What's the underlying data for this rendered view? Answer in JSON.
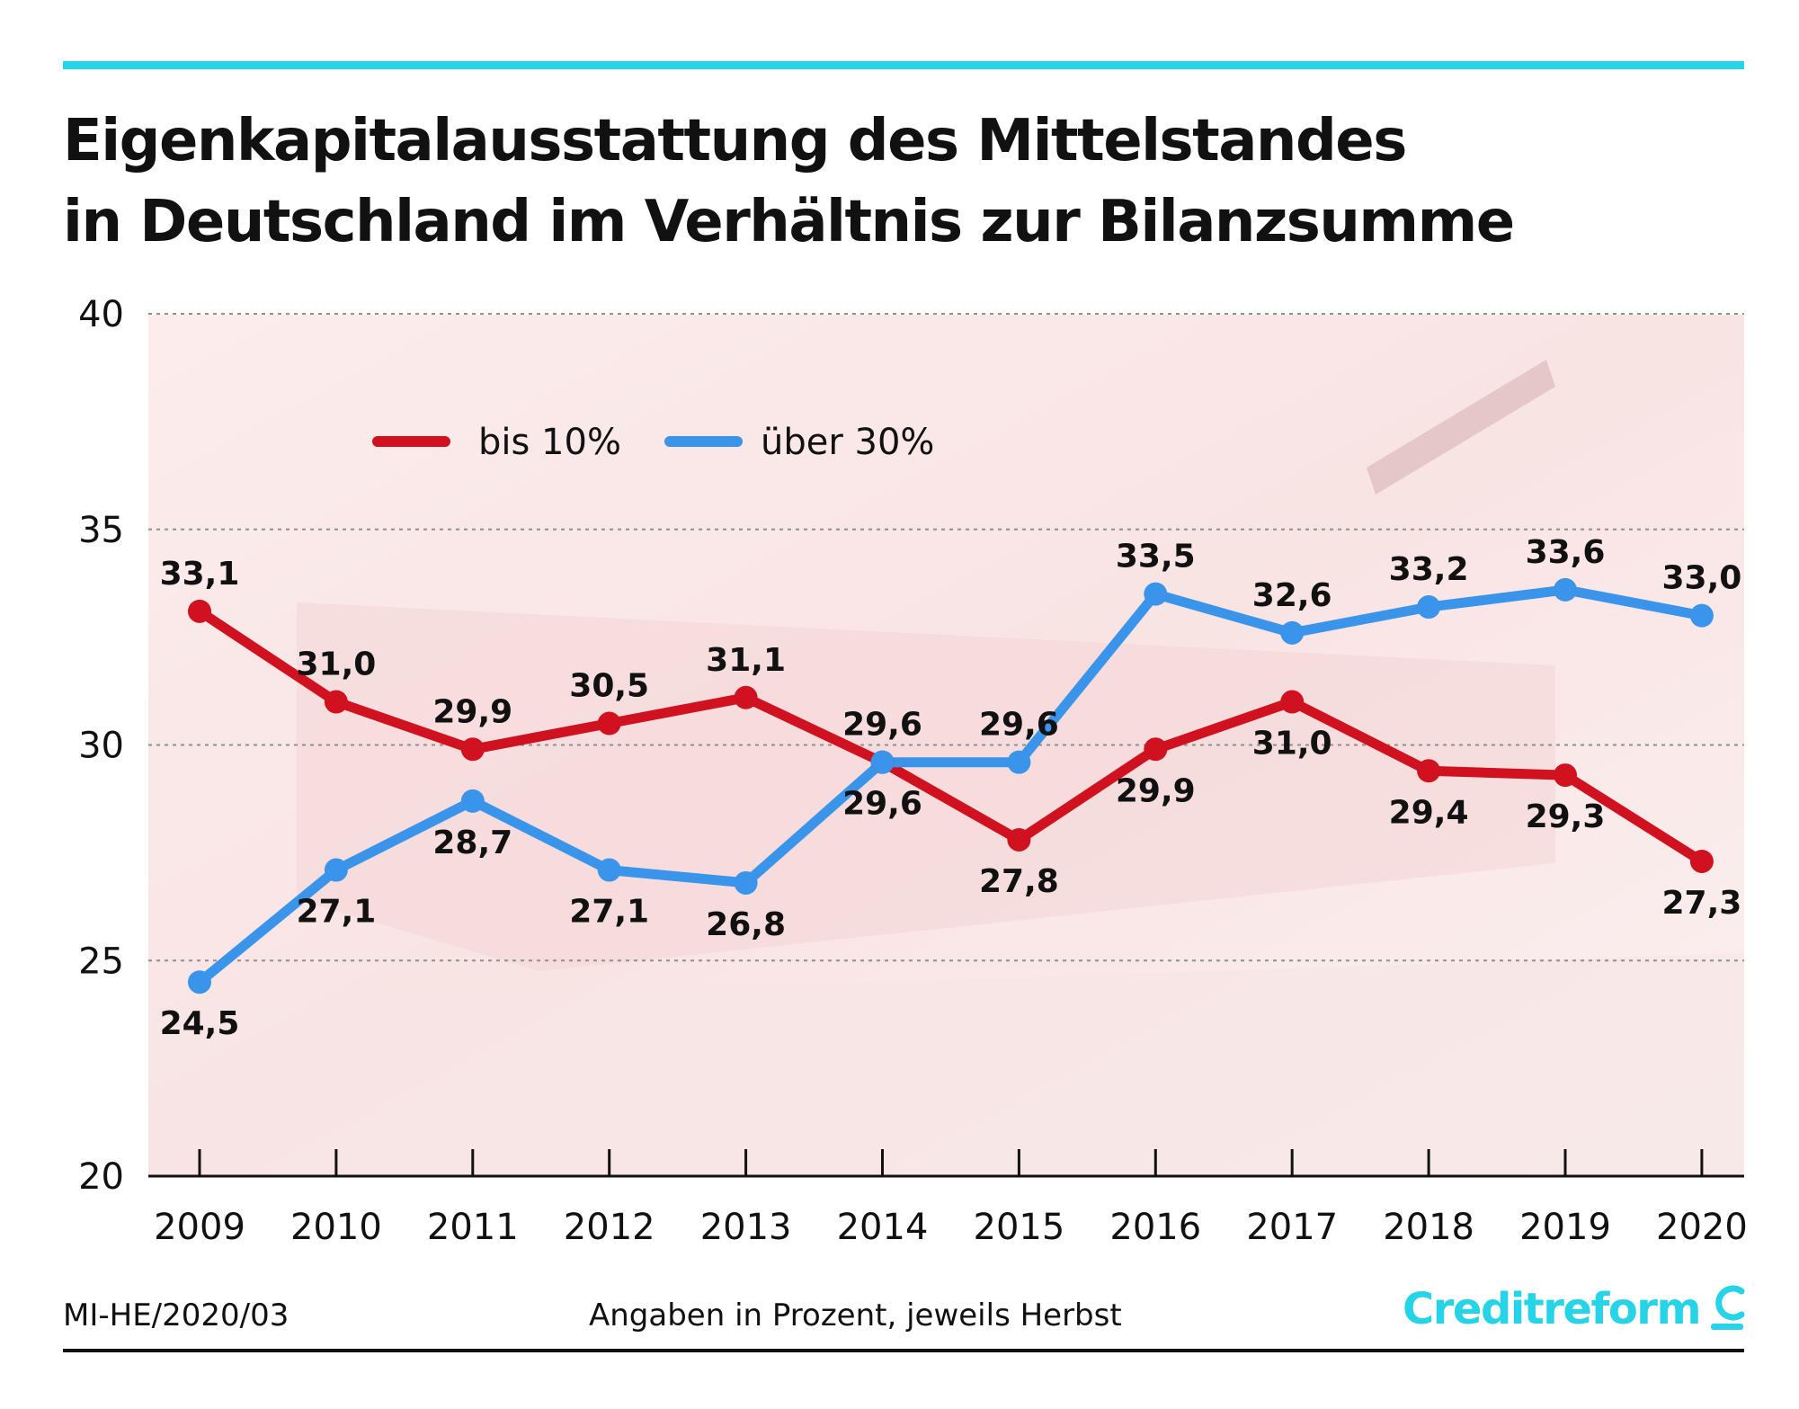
{
  "title": {
    "line1": "Eigenkapitalausstattung des Mittelstandes",
    "line2": "in Deutschland im Verhältnis zur Bilanzsumme"
  },
  "footer": {
    "source_id": "MI-HE/2020/03",
    "note": "Angaben in Prozent, jeweils Herbst",
    "brand": "Creditreform"
  },
  "colors": {
    "accent_rule": "#27d3e6",
    "series_red": "#d0111f",
    "series_blue": "#3a94ea",
    "brand": "#27d3e6",
    "grid": "#8f8f8f"
  },
  "icons": {
    "brand_logo": "creditreform-c-icon"
  },
  "chart_data": {
    "type": "line",
    "title": "Eigenkapitalausstattung des Mittelstandes in Deutschland im Verhältnis zur Bilanzsumme",
    "xlabel": "",
    "ylabel": "",
    "categories": [
      "2009",
      "2010",
      "2011",
      "2012",
      "2013",
      "2014",
      "2015",
      "2016",
      "2017",
      "2018",
      "2019",
      "2020"
    ],
    "yticks": [
      20,
      25,
      30,
      35,
      40
    ],
    "ytick_labels": [
      "20",
      "25",
      "30",
      "35",
      "40"
    ],
    "ylim": [
      20,
      40
    ],
    "grid": true,
    "legend_position": "top-left",
    "series": [
      {
        "name": "bis 10%",
        "color": "#d0111f",
        "values": [
          33.1,
          31.0,
          29.9,
          30.5,
          31.1,
          29.6,
          27.8,
          29.9,
          31.0,
          29.4,
          29.3,
          27.3
        ],
        "labels": [
          "33,1",
          "31,0",
          "29,9",
          "30,5",
          "31,1",
          "29,6",
          "27,8",
          "29,9",
          "31,0",
          "29,4",
          "29,3",
          "27,3"
        ],
        "label_positions": [
          "above",
          "above",
          "above",
          "above",
          "above",
          "below",
          "below",
          "below",
          "below",
          "below",
          "below",
          "below"
        ]
      },
      {
        "name": "über 30%",
        "color": "#3a94ea",
        "values": [
          24.5,
          27.1,
          28.7,
          27.1,
          26.8,
          29.6,
          29.6,
          33.5,
          32.6,
          33.2,
          33.6,
          33.0
        ],
        "labels": [
          "24,5",
          "27,1",
          "28,7",
          "27,1",
          "26,8",
          "29,6",
          "29,6",
          "33,5",
          "32,6",
          "33,2",
          "33,6",
          "33,0"
        ],
        "label_positions": [
          "below",
          "below",
          "below",
          "below",
          "below",
          "above",
          "above",
          "above",
          "above",
          "above",
          "above",
          "above"
        ]
      }
    ]
  }
}
